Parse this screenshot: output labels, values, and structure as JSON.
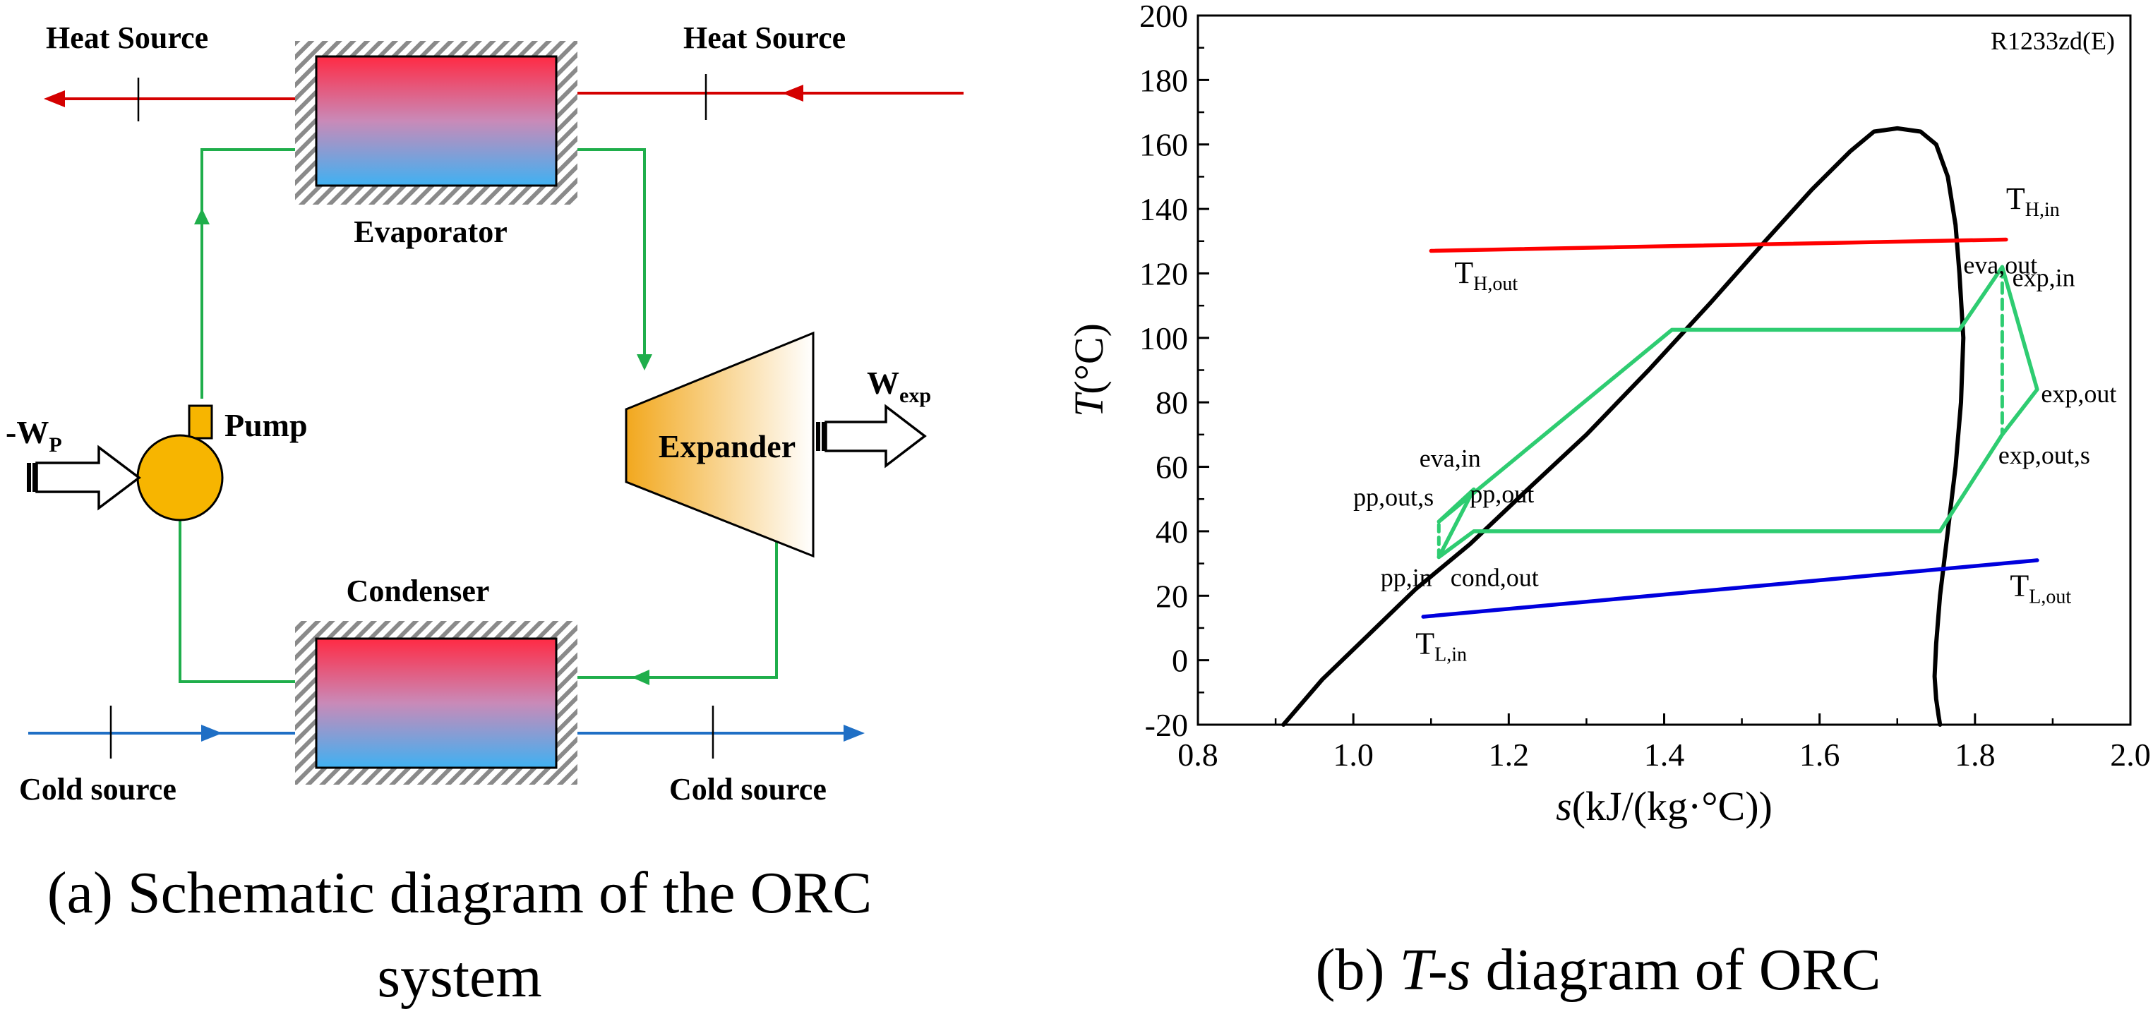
{
  "schematic": {
    "heat_source_left": "Heat Source",
    "heat_source_right": "Heat Source",
    "evaporator": "Evaporator",
    "condenser": "Condenser",
    "expander": "Expander",
    "pump": "Pump",
    "wp_main": "-W",
    "wp_sub": "P",
    "wexp_main": "W",
    "wexp_sub": "exp",
    "cold_source_left": "Cold source",
    "cold_source_right": "Cold source",
    "caption_line1": "(a) Schematic diagram of the ORC",
    "caption_line2": "system"
  },
  "colors": {
    "heat_line": "#d40000",
    "cold_line": "#1f6fc5",
    "working_fluid": "#1fae4b",
    "hx_top": "#ff2a44",
    "hx_bottom": "#3fb1f2",
    "pump_fill": "#f7b500",
    "expander_fill": "#f2a81e",
    "sat_curve": "#000000",
    "cycle": "#2ecc71",
    "th_line": "#ff0000",
    "tl_line": "#0000dd"
  },
  "chart_data": {
    "type": "line",
    "title": "",
    "fluid_label": "R1233zd(E)",
    "xlabel_italic": "s",
    "xlabel_rest": "(kJ/(kg·°C))",
    "ylabel_italic": "T",
    "ylabel_rest": "(°C)",
    "xlim": [
      0.8,
      2.0
    ],
    "ylim": [
      -20,
      200
    ],
    "xticks": [
      0.8,
      1.0,
      1.2,
      1.4,
      1.6,
      1.8,
      2.0
    ],
    "xtick_labels": [
      "0.8",
      "1.0",
      "1.2",
      "1.4",
      "1.6",
      "1.8",
      "2.0"
    ],
    "yticks": [
      -20,
      0,
      20,
      40,
      60,
      80,
      100,
      120,
      140,
      160,
      180,
      200
    ],
    "ytick_labels": [
      "-20",
      "0",
      "20",
      "40",
      "60",
      "80",
      "100",
      "120",
      "140",
      "160",
      "180",
      "200"
    ],
    "grid": false,
    "series": [
      {
        "role": "saturation",
        "x": [
          0.91,
          0.96,
          1.02,
          1.08,
          1.15,
          1.22,
          1.3,
          1.38,
          1.46,
          1.53,
          1.59,
          1.64,
          1.67,
          1.7,
          1.73,
          1.75,
          1.765,
          1.775,
          1.78,
          1.785,
          1.782,
          1.775,
          1.765,
          1.755,
          1.75,
          1.748,
          1.75,
          1.753,
          1.755
        ],
        "y": [
          -20,
          -6,
          8,
          22,
          36,
          52,
          70,
          90,
          111,
          130,
          146,
          158,
          164,
          165,
          164,
          160,
          150,
          135,
          120,
          100,
          80,
          60,
          40,
          20,
          5,
          -5,
          -12,
          -17,
          -20
        ]
      },
      {
        "role": "heat-source",
        "x": [
          1.1,
          1.84
        ],
        "y": [
          127,
          130.5
        ]
      },
      {
        "role": "cold-source",
        "x": [
          1.09,
          1.88
        ],
        "y": [
          13.5,
          31
        ]
      },
      {
        "role": "cycle",
        "x": [
          1.11,
          1.155,
          1.11,
          1.41,
          1.78,
          1.835,
          1.88,
          1.835,
          1.755,
          1.155,
          1.11
        ],
        "y": [
          32,
          53,
          43,
          102.5,
          102.5,
          122,
          84,
          70,
          40,
          40,
          32
        ]
      },
      {
        "role": "isentropic-expansion",
        "x": [
          1.835,
          1.835
        ],
        "y": [
          122,
          70
        ]
      },
      {
        "role": "isentropic-pump",
        "x": [
          1.11,
          1.11
        ],
        "y": [
          32,
          43
        ]
      }
    ],
    "annotations": [
      {
        "main": "T",
        "sub": "H,in",
        "x": 1.84,
        "y": 140
      },
      {
        "main": "T",
        "sub": "H,out",
        "x": 1.13,
        "y": 117
      },
      {
        "main": "T",
        "sub": "L,out",
        "x": 1.845,
        "y": 20
      },
      {
        "main": "T",
        "sub": "L,in",
        "x": 1.08,
        "y": 2
      },
      {
        "main": "eva,out",
        "x": 1.785,
        "y": 120
      },
      {
        "main": "exp,in",
        "x": 1.848,
        "y": 116
      },
      {
        "main": "exp,out",
        "x": 1.885,
        "y": 80
      },
      {
        "main": "exp,out,s",
        "x": 1.83,
        "y": 61
      },
      {
        "main": "eva,in",
        "x": 1.085,
        "y": 60
      },
      {
        "main": "pp,out,s",
        "x": 1.0,
        "y": 48
      },
      {
        "main": "pp,out",
        "x": 1.15,
        "y": 49
      },
      {
        "main": "pp,in",
        "x": 1.035,
        "y": 23
      },
      {
        "main": "cond,out",
        "x": 1.125,
        "y": 23
      }
    ],
    "caption_prefix": "(b) ",
    "caption_italic": "T-s",
    "caption_suffix": " diagram of ORC"
  }
}
